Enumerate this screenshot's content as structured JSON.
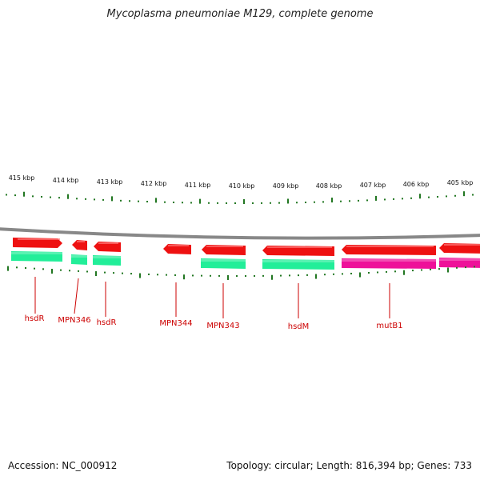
{
  "title": "Mycoplasma pneumoniae M129, complete genome",
  "footer": {
    "accession": "Accession: NC_000912",
    "summary": "Topology: circular; Length: 816,394 bp; Genes: 733"
  },
  "colors": {
    "gene": "#ee1111",
    "cds": "#22ee99",
    "rna": "#ee1199",
    "ruler_ticks": "#227722",
    "backbone": "#888888",
    "label_text": "#cc0000"
  },
  "ruler": {
    "labels": [
      "415 kbp",
      "414 kbp",
      "413 kbp",
      "412 kbp",
      "411 kbp",
      "410 kbp",
      "409 kbp",
      "408 kbp",
      "407 kbp",
      "406 kbp",
      "405 kbp"
    ]
  },
  "features": [
    {
      "name": "hsdR"
    },
    {
      "name": "MPN346"
    },
    {
      "name": "hsdR"
    },
    {
      "name": "MPN344"
    },
    {
      "name": "MPN343"
    },
    {
      "name": "hsdM"
    },
    {
      "name": "mutB1"
    }
  ]
}
